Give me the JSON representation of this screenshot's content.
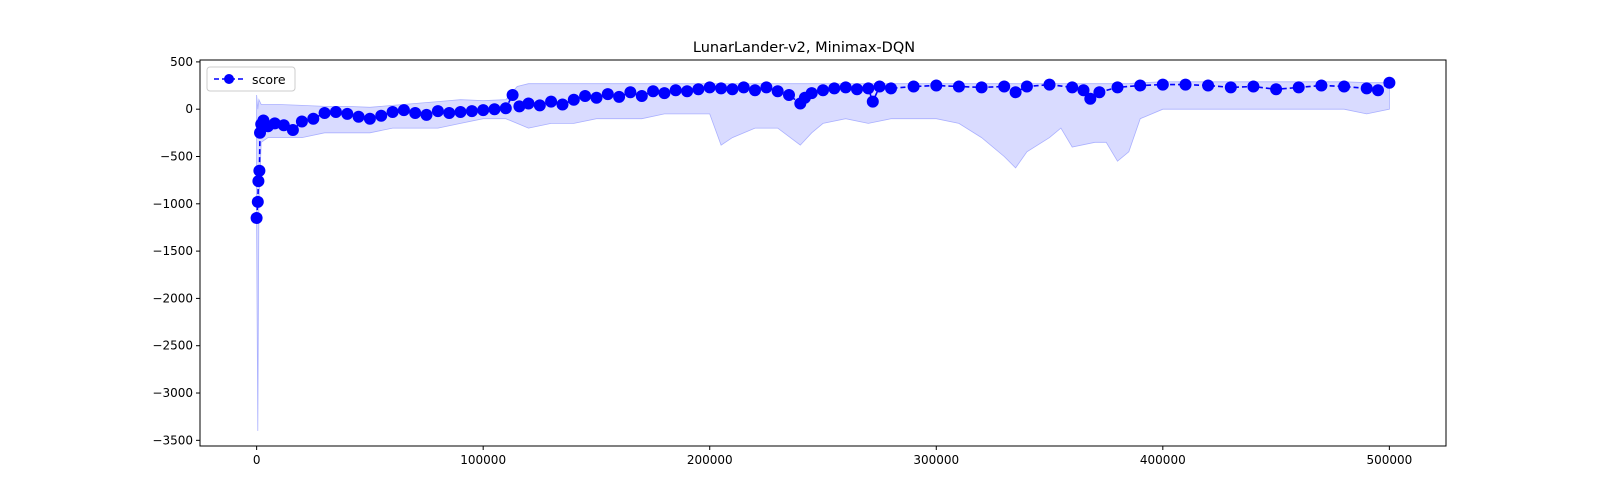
{
  "chart_data": {
    "type": "line",
    "title": "LunarLander-v2, Minimax-DQN",
    "xlabel": "",
    "ylabel": "",
    "xlim": [
      -25000,
      525000
    ],
    "ylim": [
      -3560,
      520
    ],
    "x_ticks": [
      0,
      100000,
      200000,
      300000,
      400000,
      500000
    ],
    "x_tick_labels": [
      "0",
      "100000",
      "200000",
      "300000",
      "400000",
      "500000"
    ],
    "y_ticks": [
      500,
      0,
      -500,
      -1000,
      -1500,
      -2000,
      -2500,
      -3000,
      -3500
    ],
    "y_tick_labels": [
      "500",
      "0",
      "−500",
      "−1000",
      "−1500",
      "−2000",
      "−2500",
      "−3000",
      "−3500"
    ],
    "grid": false,
    "legend": {
      "position": "upper-left",
      "entries": [
        "score"
      ]
    },
    "colors": {
      "series": "#0000ff",
      "band": "#aab0ff"
    },
    "series": [
      {
        "name": "score",
        "style": "dashed line with circle markers",
        "x": [
          0,
          500,
          800,
          1200,
          1500,
          2000,
          3000,
          5000,
          8000,
          12000,
          16000,
          20000,
          25000,
          30000,
          35000,
          40000,
          45000,
          50000,
          55000,
          60000,
          65000,
          70000,
          75000,
          80000,
          85000,
          90000,
          95000,
          100000,
          105000,
          110000,
          113000,
          116000,
          120000,
          125000,
          130000,
          135000,
          140000,
          145000,
          150000,
          155000,
          160000,
          165000,
          170000,
          175000,
          180000,
          185000,
          190000,
          195000,
          200000,
          205000,
          210000,
          215000,
          220000,
          225000,
          230000,
          235000,
          240000,
          242000,
          245000,
          250000,
          255000,
          260000,
          265000,
          270000,
          272000,
          275000,
          280000,
          290000,
          300000,
          310000,
          320000,
          330000,
          335000,
          340000,
          350000,
          360000,
          365000,
          368000,
          372000,
          380000,
          390000,
          400000,
          410000,
          420000,
          430000,
          440000,
          450000,
          460000,
          470000,
          480000,
          490000,
          495000,
          500000
        ],
        "y": [
          -1150,
          -980,
          -760,
          -650,
          -250,
          -160,
          -120,
          -180,
          -150,
          -170,
          -220,
          -130,
          -100,
          -40,
          -30,
          -50,
          -80,
          -100,
          -70,
          -30,
          -10,
          -40,
          -60,
          -20,
          -40,
          -30,
          -20,
          -10,
          0,
          10,
          150,
          30,
          60,
          40,
          80,
          50,
          100,
          140,
          120,
          160,
          130,
          180,
          140,
          190,
          170,
          200,
          190,
          210,
          230,
          220,
          210,
          230,
          200,
          230,
          190,
          150,
          60,
          120,
          170,
          200,
          220,
          230,
          210,
          220,
          80,
          240,
          220,
          240,
          250,
          240,
          230,
          240,
          180,
          240,
          260,
          230,
          200,
          110,
          180,
          230,
          250,
          260,
          260,
          250,
          230,
          240,
          210,
          230,
          250,
          240,
          220,
          200,
          280
        ]
      }
    ],
    "band": {
      "x": [
        0,
        500,
        1000,
        2000,
        5000,
        10000,
        20000,
        30000,
        40000,
        50000,
        60000,
        70000,
        80000,
        90000,
        100000,
        110000,
        115000,
        120000,
        130000,
        140000,
        150000,
        160000,
        170000,
        180000,
        190000,
        200000,
        205000,
        210000,
        220000,
        230000,
        240000,
        245000,
        250000,
        260000,
        270000,
        280000,
        290000,
        300000,
        310000,
        320000,
        330000,
        335000,
        340000,
        350000,
        355000,
        360000,
        370000,
        375000,
        380000,
        385000,
        390000,
        400000,
        420000,
        440000,
        460000,
        480000,
        490000,
        500000
      ],
      "upper": [
        150,
        0,
        100,
        50,
        50,
        50,
        40,
        30,
        30,
        20,
        40,
        60,
        80,
        100,
        90,
        100,
        240,
        270,
        270,
        270,
        270,
        270,
        270,
        270,
        270,
        270,
        270,
        270,
        270,
        270,
        270,
        270,
        270,
        270,
        270,
        270,
        270,
        270,
        270,
        270,
        270,
        270,
        270,
        270,
        270,
        270,
        270,
        270,
        270,
        270,
        280,
        290,
        290,
        290,
        290,
        290,
        280,
        280
      ],
      "lower": [
        -1200,
        -3400,
        -1000,
        -350,
        -300,
        -300,
        -300,
        -250,
        -250,
        -250,
        -200,
        -200,
        -200,
        -150,
        -100,
        -100,
        -150,
        -200,
        -150,
        -150,
        -100,
        -100,
        -100,
        -50,
        -50,
        -50,
        -380,
        -300,
        -200,
        -200,
        -380,
        -250,
        -150,
        -100,
        -150,
        -100,
        -100,
        -100,
        -150,
        -300,
        -500,
        -620,
        -450,
        -300,
        -200,
        -400,
        -350,
        -350,
        -550,
        -450,
        -100,
        0,
        0,
        0,
        0,
        0,
        -50,
        0
      ]
    }
  }
}
